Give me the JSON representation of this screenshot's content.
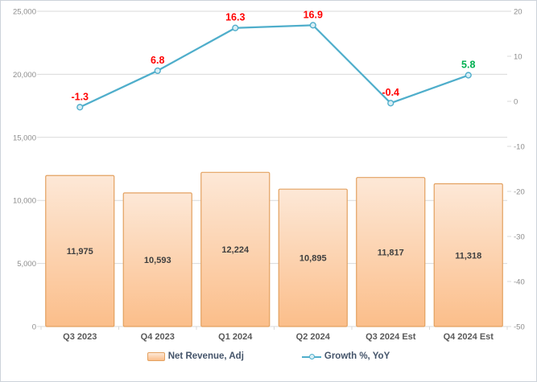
{
  "chart_data": {
    "type": "combo-bar-line",
    "title": "",
    "categories": [
      "Q3 2023",
      "Q4 2023",
      "Q1 2024",
      "Q2 2024",
      "Q3 2024 Est",
      "Q4 2024 Est"
    ],
    "series": [
      {
        "name": "Net Revenue, Adj",
        "type": "bar",
        "axis": "left",
        "values": [
          11975,
          10593,
          12224,
          10895,
          11817,
          11318
        ],
        "data_labels": [
          "11,975",
          "10,593",
          "12,224",
          "10,895",
          "11,817",
          "11,318"
        ]
      },
      {
        "name": "Growth %, YoY",
        "type": "line",
        "axis": "right",
        "values": [
          -1.3,
          6.8,
          16.3,
          16.9,
          -0.4,
          5.8
        ],
        "data_labels": [
          "-1.3",
          "6.8",
          "16.3",
          "16.9",
          "-0.4",
          "5.8"
        ],
        "data_label_colors": [
          "#FF0000",
          "#FF0000",
          "#FF0000",
          "#FF0000",
          "#FF0000",
          "#00B050"
        ]
      }
    ],
    "left_axis": {
      "min": 0,
      "max": 25000,
      "step": 5000,
      "tick_labels": [
        "0",
        "5,000",
        "10,000",
        "15,000",
        "20,000",
        "25,000"
      ]
    },
    "right_axis": {
      "min": -50,
      "max": 20,
      "step": 10,
      "tick_labels": [
        "-50",
        "-40",
        "-30",
        "-20",
        "-10",
        "0",
        "10",
        "20"
      ]
    },
    "grid": true,
    "legend_position": "bottom"
  },
  "colors": {
    "bar_fill_top": "#FDE8D7",
    "bar_fill_bottom": "#FBBE8A",
    "bar_border": "#E3A160",
    "line": "#4FAECB",
    "marker_fill": "#D9EEF5",
    "gridline": "#D9D9D9",
    "axis_tick_text": "#8C8C8C",
    "category_text": "#595959",
    "bar_label_text": "#404040",
    "legend_text": "#44546A"
  }
}
